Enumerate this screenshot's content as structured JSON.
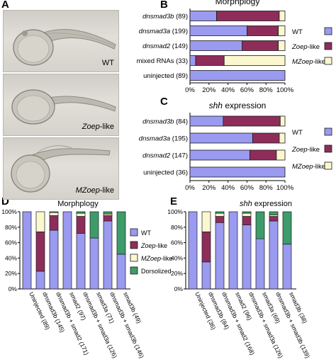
{
  "panels": {
    "A": "A",
    "B": "B",
    "C": "C",
    "D": "D",
    "E": "E"
  },
  "photos": [
    {
      "label_prefix": "",
      "label_italic": "",
      "label_suffix": "WT"
    },
    {
      "label_prefix": "",
      "label_italic": "Zoep",
      "label_suffix": "-like"
    },
    {
      "label_prefix": "",
      "label_italic": "MZoep",
      "label_suffix": "-like"
    }
  ],
  "colors": {
    "WT": "#9a9af0",
    "Zoep-like": "#8e2d5a",
    "MZoep-like": "#fbf8d0",
    "Dorsolized": "#3d9c6a",
    "outline": "#1a1a1a"
  },
  "chart_data": [
    {
      "id": "B",
      "type": "bar",
      "orientation": "horizontal",
      "stacked": true,
      "title": "Morphplogy",
      "categories": [
        "dnsmad3b (89)",
        "dnsmad3a (199)",
        "dnsmad2 (149)",
        "mixed RNAs (33)",
        "uninjected (89)"
      ],
      "category_italic": [
        true,
        true,
        true,
        false,
        false
      ],
      "series": [
        {
          "name": "WT",
          "values": [
            28,
            60,
            55,
            6,
            100
          ]
        },
        {
          "name": "Zoep-like",
          "values": [
            66,
            33,
            38,
            30,
            0
          ]
        },
        {
          "name": "MZoep-like",
          "values": [
            6,
            7,
            7,
            64,
            0
          ]
        }
      ],
      "xticks": [
        "0%",
        "20%",
        "40%",
        "60%",
        "80%",
        "100%"
      ],
      "xlim": [
        0,
        100
      ],
      "legend": [
        "WT",
        "Zoep-like",
        "MZoep-like"
      ]
    },
    {
      "id": "C",
      "type": "bar",
      "orientation": "horizontal",
      "stacked": true,
      "title": "shh expression",
      "categories": [
        "dnsmad3b (84)",
        "dnsmad3a (195)",
        "dnsmad2 (147)",
        "uninjected (36)"
      ],
      "category_italic": [
        true,
        true,
        true,
        false
      ],
      "series": [
        {
          "name": "WT",
          "values": [
            35,
            66,
            63,
            100
          ]
        },
        {
          "name": "Zoep-like",
          "values": [
            60,
            28,
            28,
            0
          ]
        },
        {
          "name": "MZoep-like",
          "values": [
            5,
            6,
            9,
            0
          ]
        }
      ],
      "xticks": [
        "0%",
        "20%",
        "40%",
        "60%",
        "80%",
        "100%"
      ],
      "xlim": [
        0,
        100
      ],
      "legend": [
        "WT",
        "Zoep-like",
        "MZoep-like"
      ]
    },
    {
      "id": "D",
      "type": "bar",
      "orientation": "vertical",
      "stacked": true,
      "title": "Morphplogy",
      "categories": [
        "Uninjected (89)",
        "dnsmad3b (145)",
        "dnsmad3b + smad2 (171)",
        "smad2 (97)",
        "dnsmad3b + smad3a (126)",
        "smad3a (71)",
        "dnsmad3b + smad3b (146)",
        "smad3b (49)"
      ],
      "series": [
        {
          "name": "WT",
          "values": [
            100,
            23,
            76,
            100,
            72,
            66,
            88,
            45
          ]
        },
        {
          "name": "Zoep-like",
          "values": [
            0,
            51,
            19,
            0,
            22,
            0,
            7,
            0
          ]
        },
        {
          "name": "MZoep-like",
          "values": [
            0,
            26,
            4,
            0,
            4,
            0,
            2,
            0
          ]
        },
        {
          "name": "Dorsolized",
          "values": [
            0,
            0,
            1,
            0,
            2,
            34,
            3,
            55
          ]
        }
      ],
      "yticks": [
        "0%",
        "20%",
        "40%",
        "60%",
        "80%",
        "100%"
      ],
      "ylim": [
        0,
        100
      ],
      "legend": [
        "WT",
        "Zoep-like",
        "MZoep-like",
        "Dorsolized"
      ]
    },
    {
      "id": "E",
      "type": "bar",
      "orientation": "vertical",
      "stacked": true,
      "title": "shh expression",
      "categories": [
        "Uninjected (36)",
        "dnsmad3b (84)",
        "dnsmad3b + smad2 (168)",
        "smad2 (96)",
        "dnsmad3b + smad3a (126)",
        "smad3a (69)",
        "dnsmad3b + smad3b (139)",
        "smad3b (38)"
      ],
      "series": [
        {
          "name": "WT",
          "values": [
            100,
            35,
            86,
            100,
            83,
            65,
            88,
            58
          ]
        },
        {
          "name": "Zoep-like",
          "values": [
            0,
            39,
            8,
            0,
            11,
            0,
            6,
            0
          ]
        },
        {
          "name": "MZoep-like",
          "values": [
            0,
            26,
            4,
            0,
            4,
            0,
            2,
            0
          ]
        },
        {
          "name": "Dorsolized",
          "values": [
            0,
            0,
            2,
            0,
            2,
            35,
            4,
            42
          ]
        }
      ],
      "yticks": [
        "0%",
        "20%",
        "40%",
        "60%",
        "80%",
        "100%"
      ],
      "ylim": [
        0,
        100
      ]
    }
  ]
}
